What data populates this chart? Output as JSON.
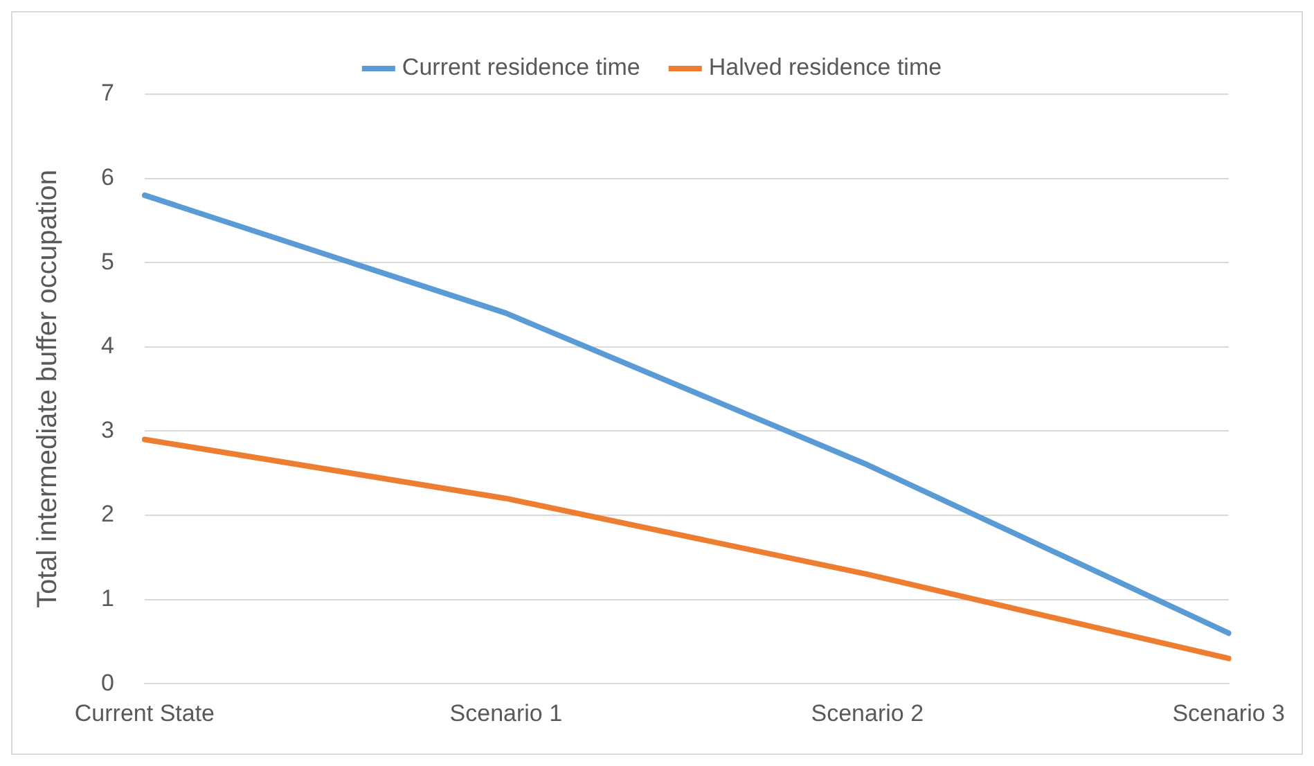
{
  "chart_data": {
    "type": "line",
    "ylabel": "Total intermediate buffer occupation",
    "categories": [
      "Current State",
      "Scenario 1",
      "Scenario 2",
      "Scenario 3"
    ],
    "series": [
      {
        "name": "Current residence time",
        "color": "#5b9bd5",
        "values": [
          5.8,
          4.4,
          2.6,
          0.6
        ]
      },
      {
        "name": "Halved residence time",
        "color": "#ed7d31",
        "values": [
          2.9,
          2.2,
          1.3,
          0.3
        ]
      }
    ],
    "ylim": [
      0,
      7
    ],
    "yticks": [
      0,
      1,
      2,
      3,
      4,
      5,
      6,
      7
    ],
    "grid": "y",
    "legend": "top",
    "marker": "none",
    "line_style": "solid"
  }
}
